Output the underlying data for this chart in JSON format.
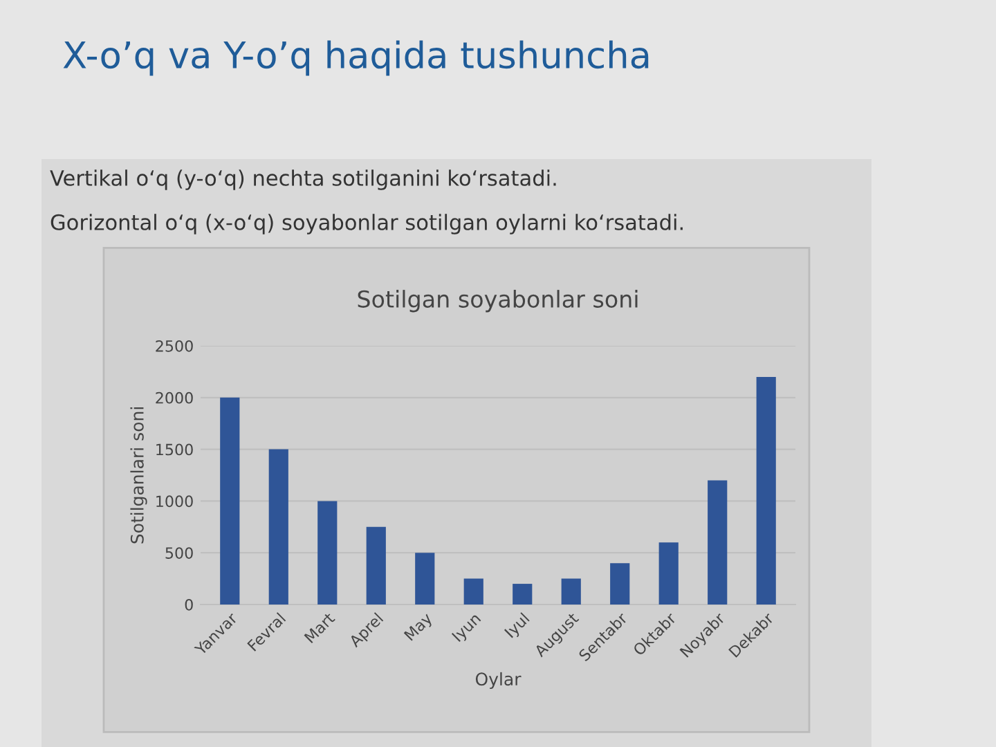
{
  "chart_data": {
    "type": "bar",
    "title": "Sotilgan soyabonlar soni",
    "xlabel": "Oylar",
    "ylabel": "Sotilganlari soni",
    "annotations": [
      "X-o’q va Y-o’q haqida tushuncha",
      "Vertikal o‘q (y-o‘q) nechta sotilganini ko‘rsatadi.",
      "Gorizontal o‘q (x-o‘q) soyabonlar sotilgan oylarni ko‘rsatadi."
    ],
    "categories": [
      "Yanvar",
      "Fevral",
      "Mart",
      "Aprel",
      "May",
      "Iyun",
      "Iyul",
      "August",
      "Sentabr",
      "Oktabr",
      "Noyabr",
      "Dekabr"
    ],
    "values": [
      2000,
      1500,
      1000,
      750,
      500,
      250,
      200,
      250,
      400,
      600,
      1200,
      2200
    ],
    "color": "#2f5597",
    "ylim": [
      0,
      2500
    ],
    "yticks": [
      0,
      500,
      1000,
      1500,
      2000,
      2500
    ],
    "grid": "y"
  }
}
